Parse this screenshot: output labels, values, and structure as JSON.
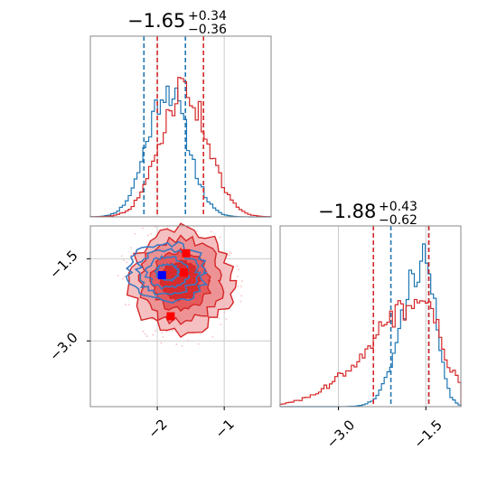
{
  "chart_data": [
    {
      "type": "histogram",
      "panel": "x-marginal",
      "title": {
        "median": "−1.65",
        "plus": "+0.34",
        "minus": "−0.36"
      },
      "xlim": [
        -3.0,
        -0.3
      ],
      "grid": true,
      "series": [
        {
          "color": "#1f77b4",
          "peak_x": -1.85,
          "sigma": 0.3,
          "quantiles": [
            -2.2,
            -1.58
          ]
        },
        {
          "color": "#d62728",
          "peak_x": -1.6,
          "sigma": 0.35,
          "quantiles": [
            -2.0,
            -1.31
          ]
        }
      ]
    },
    {
      "type": "histogram",
      "panel": "y-marginal",
      "title": {
        "median": "−1.88",
        "plus": "+0.43",
        "minus": "−0.62"
      },
      "xlim": [
        -4.0,
        -0.9
      ],
      "xticks": [
        "−3.0",
        "−1.5"
      ],
      "grid": true,
      "series": [
        {
          "color": "#1f77b4",
          "peak_x": -1.55,
          "sigma": 0.3,
          "quantiles": [
            -2.1,
            -1.45
          ]
        },
        {
          "color": "#d62728",
          "peak_x": -1.6,
          "sigma": 0.55,
          "quantiles": [
            -2.4,
            -1.45
          ]
        }
      ]
    },
    {
      "type": "contour",
      "panel": "joint",
      "xlim": [
        -3.0,
        -0.3
      ],
      "ylim": [
        -4.2,
        -0.9
      ],
      "xticks": [
        "−2",
        "−1"
      ],
      "yticks": [
        "−1.5",
        "−3.0"
      ],
      "grid": true,
      "series": [
        {
          "color": "#1f77b4",
          "center": [
            -1.85,
            -1.75
          ],
          "sigma": [
            0.3,
            0.35
          ],
          "marker": [
            -1.93,
            -1.8
          ]
        },
        {
          "color": "#d62728",
          "center": [
            -1.65,
            -1.9
          ],
          "sigma": [
            0.35,
            0.55
          ],
          "markers": [
            [
              -1.57,
              -1.4
            ],
            [
              -1.6,
              -1.75
            ],
            [
              -1.8,
              -2.55
            ]
          ]
        }
      ]
    }
  ]
}
